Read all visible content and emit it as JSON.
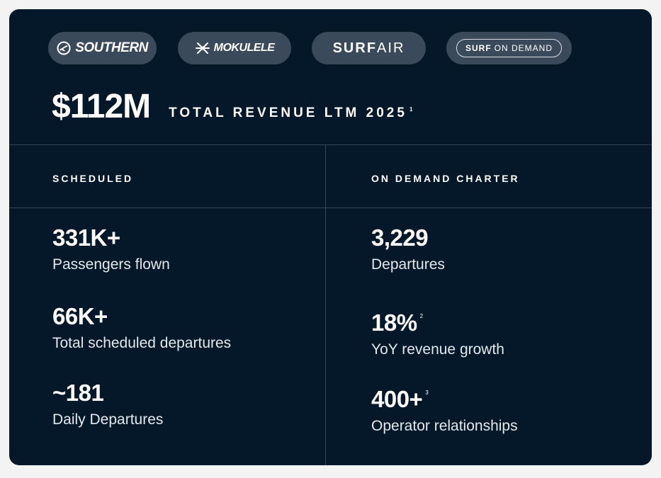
{
  "brands": [
    {
      "name": "SOUTHERN",
      "icon": "plane-circle-icon"
    },
    {
      "name": "MOKULELE",
      "icon": "flower-icon"
    },
    {
      "bold": "SURF",
      "light": "AIR"
    },
    {
      "bold": "SURF",
      "light": "ON DEMAND"
    }
  ],
  "revenue": {
    "value": "$112M",
    "label": "TOTAL REVENUE LTM 2025",
    "footnote": "1"
  },
  "scheduled": {
    "heading": "SCHEDULED",
    "stats": [
      {
        "value": "331K+",
        "label": "Passengers flown",
        "footnote": ""
      },
      {
        "value": "66K+",
        "label": "Total scheduled departures",
        "footnote": ""
      },
      {
        "value": "~181",
        "label": "Daily Departures",
        "footnote": ""
      }
    ]
  },
  "charter": {
    "heading": "ON DEMAND CHARTER",
    "stats": [
      {
        "value": "3,229",
        "label": "Departures",
        "footnote": ""
      },
      {
        "value": "18%",
        "label": "YoY revenue growth",
        "footnote": "2"
      },
      {
        "value": "400+",
        "label": "Operator relationships",
        "footnote": "3"
      }
    ]
  },
  "colors": {
    "card_bg": "#041829",
    "pill_bg": "#3b4a5a",
    "divider": "#33475a",
    "page_bg": "#f3f3f4"
  }
}
